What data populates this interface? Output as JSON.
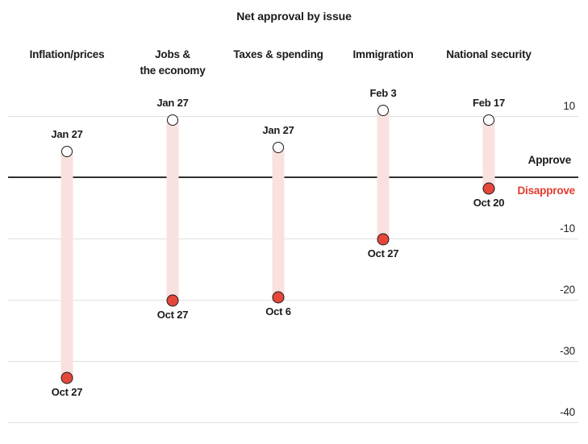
{
  "title": "Net approval by issue",
  "axis": {
    "approve_label": "Approve",
    "disapprove_label": "Disapprove"
  },
  "colors": {
    "disapprove_text_red": "#e23b2e",
    "dot_red_fill": "#e5483b",
    "dot_stroke": "#1b1b1b",
    "band_pink": "#f9e1df",
    "gridline": "#e0e0e0",
    "zero_line": "#2f2f2f",
    "text": "#1a1a1a"
  },
  "chart_data": {
    "type": "dumbbell",
    "title": "Net approval by issue",
    "ylabel": "Net approval",
    "ylim": [
      -42,
      13
    ],
    "grid": true,
    "zero_baseline": 0,
    "yticks": [
      {
        "label": "10",
        "value": 10
      },
      {
        "label": "-10",
        "value": -10
      },
      {
        "label": "-20",
        "value": -20
      },
      {
        "label": "-30",
        "value": -30
      },
      {
        "label": "-40",
        "value": -40
      }
    ],
    "baseline_labels": {
      "above": "Approve",
      "below": "Disapprove"
    },
    "categories": [
      "Inflation/prices",
      "Jobs &\nthe economy",
      "Taxes & spending",
      "Immigration",
      "National security"
    ],
    "series": [
      {
        "issue": "Inflation/prices",
        "approve_date": "Jan 27",
        "approve_value": 4.2,
        "disapprove_date": "Oct 27",
        "disapprove_value": -32.8
      },
      {
        "issue": "Jobs &\nthe economy",
        "approve_date": "Jan 27",
        "approve_value": 9.4,
        "disapprove_date": "Oct 27",
        "disapprove_value": -20.1
      },
      {
        "issue": "Taxes & spending",
        "approve_date": "Jan 27",
        "approve_value": 4.9,
        "disapprove_date": "Oct 6",
        "disapprove_value": -19.6
      },
      {
        "issue": "Immigration",
        "approve_date": "Feb 3",
        "approve_value": 10.9,
        "disapprove_date": "Oct 27",
        "disapprove_value": -10.1
      },
      {
        "issue": "National security",
        "approve_date": "Feb 17",
        "approve_value": 9.4,
        "disapprove_date": "Oct 20",
        "disapprove_value": -1.9
      }
    ]
  }
}
